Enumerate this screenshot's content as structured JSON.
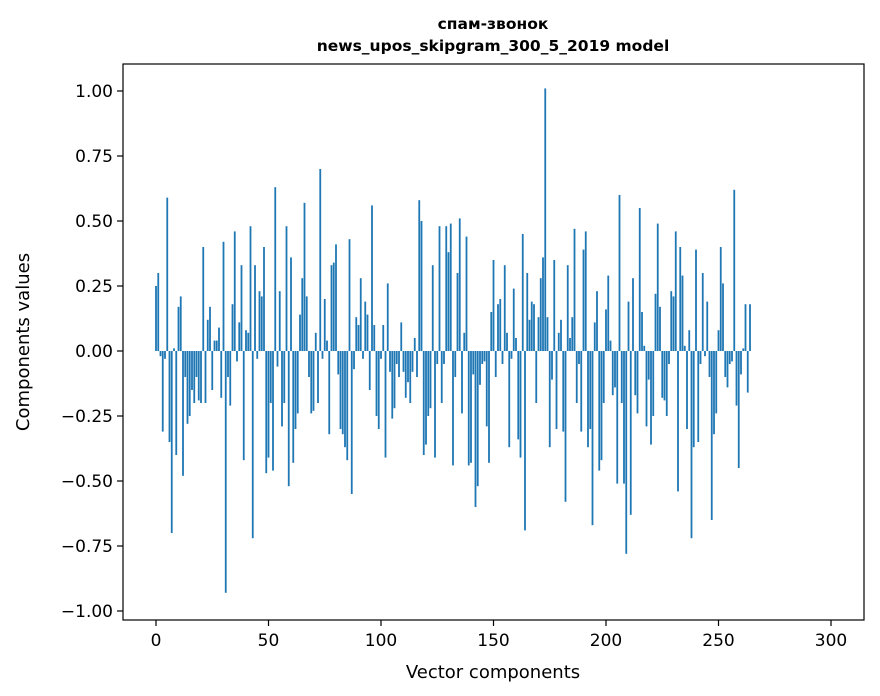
{
  "chart_data": {
    "type": "bar",
    "title_lines": [
      "спам-звонок",
      "news_upos_skipgram_300_5_2019 model"
    ],
    "xlabel": "Vector components",
    "ylabel": "Components values",
    "xlim": [
      -15,
      315
    ],
    "ylim": [
      -1.03,
      1.1
    ],
    "xticks": [
      0,
      50,
      100,
      150,
      200,
      250,
      300
    ],
    "xtick_labels": [
      "0",
      "50",
      "100",
      "150",
      "200",
      "250",
      "300"
    ],
    "yticks": [
      -1.0,
      -0.75,
      -0.5,
      -0.25,
      0.0,
      0.25,
      0.5,
      0.75,
      1.0
    ],
    "ytick_labels": [
      "−1.00",
      "−0.75",
      "−0.50",
      "−0.25",
      "0.00",
      "0.25",
      "0.50",
      "0.75",
      "1.00"
    ],
    "grid": false,
    "bar_color": "#1f77b4",
    "values": [
      0.25,
      0.3,
      -0.02,
      -0.31,
      -0.03,
      0.59,
      -0.35,
      -0.7,
      0.01,
      -0.4,
      0.17,
      0.21,
      -0.48,
      -0.1,
      -0.28,
      -0.25,
      -0.15,
      -0.2,
      -0.1,
      -0.19,
      -0.2,
      0.4,
      -0.2,
      0.12,
      0.17,
      -0.15,
      0.04,
      0.04,
      0.09,
      -0.18,
      0.42,
      -0.93,
      -0.1,
      -0.21,
      0.18,
      0.46,
      -0.04,
      0.11,
      0.33,
      -0.42,
      0.08,
      0.07,
      0.48,
      -0.72,
      0.33,
      -0.03,
      0.23,
      0.21,
      0.4,
      -0.47,
      -0.41,
      -0.2,
      -0.46,
      0.63,
      -0.06,
      0.23,
      -0.29,
      -0.2,
      0.48,
      -0.52,
      0.36,
      -0.43,
      -0.3,
      -0.24,
      0.14,
      0.28,
      0.57,
      0.21,
      -0.1,
      -0.24,
      -0.23,
      0.07,
      -0.2,
      0.7,
      -0.03,
      0.2,
      0.04,
      -0.32,
      0.33,
      0.34,
      0.41,
      -0.09,
      -0.3,
      -0.32,
      -0.37,
      -0.42,
      0.43,
      -0.55,
      -0.07,
      0.13,
      0.1,
      0.28,
      -0.03,
      0.19,
      0.14,
      -0.15,
      0.56,
      0.1,
      -0.25,
      -0.3,
      -0.03,
      0.1,
      -0.41,
      0.26,
      -0.08,
      -0.26,
      -0.22,
      -0.05,
      -0.1,
      0.11,
      -0.08,
      -0.18,
      -0.12,
      -0.2,
      -0.08,
      0.05,
      -0.1,
      0.58,
      0.5,
      -0.4,
      -0.36,
      -0.25,
      -0.22,
      0.33,
      -0.41,
      -0.05,
      0.48,
      -0.2,
      -0.05,
      0.48,
      0.38,
      0.49,
      -0.44,
      -0.1,
      0.3,
      0.51,
      -0.24,
      0.07,
      0.44,
      -0.44,
      -0.43,
      -0.09,
      -0.6,
      -0.52,
      -0.13,
      -0.05,
      -0.04,
      -0.29,
      -0.43,
      0.15,
      0.35,
      -0.1,
      0.18,
      0.2,
      -0.05,
      0.33,
      0.07,
      -0.37,
      -0.03,
      0.24,
      0.05,
      -0.34,
      -0.41,
      0.45,
      -0.69,
      0.3,
      0.12,
      0.19,
      0.18,
      -0.2,
      0.13,
      0.28,
      0.36,
      1.01,
      0.13,
      -0.37,
      -0.11,
      0.35,
      -0.3,
      0.07,
      0.12,
      -0.31,
      -0.58,
      0.33,
      0.05,
      0.13,
      0.47,
      -0.2,
      -0.05,
      -0.31,
      0.39,
      0.46,
      -0.37,
      -0.3,
      -0.67,
      0.11,
      0.23,
      -0.46,
      -0.42,
      -0.2,
      0.16,
      0.29,
      0.04,
      -0.17,
      -0.14,
      -0.51,
      0.6,
      -0.2,
      -0.51,
      -0.78,
      0.19,
      -0.63,
      0.28,
      -0.17,
      -0.24,
      0.55,
      0.15,
      0.02,
      -0.29,
      -0.11,
      -0.36,
      -0.25,
      0.22,
      0.49,
      0.17,
      -0.18,
      -0.19,
      -0.25,
      -0.05,
      0.23,
      0.21,
      0.46,
      -0.54,
      0.4,
      0.29,
      0.02,
      -0.3,
      0.08,
      -0.72,
      -0.37,
      0.39,
      -0.35,
      -0.05,
      0.3,
      -0.02,
      0.19,
      -0.1,
      -0.65,
      -0.32,
      -0.24,
      0.08,
      0.4,
      0.26,
      -0.1,
      -0.14,
      -0.05,
      -0.04,
      0.62,
      -0.21,
      -0.45,
      -0.09,
      0.01,
      0.18,
      -0.16,
      0.18
    ]
  }
}
